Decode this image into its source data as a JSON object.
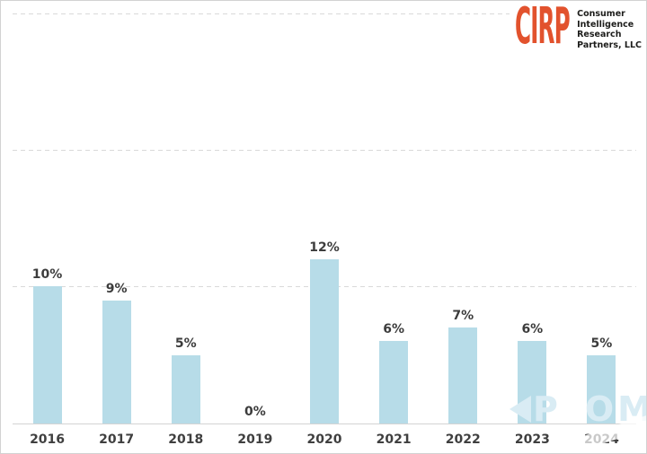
{
  "logo": {
    "acronym": "CIRP",
    "lines": [
      "Consumer",
      "Intelligence",
      "Research",
      "Partners, LLC"
    ]
  },
  "chart_data": {
    "type": "bar",
    "title": "",
    "xlabel": "",
    "ylabel": "",
    "categories": [
      "2016",
      "2017",
      "2018",
      "2019",
      "2020",
      "2021",
      "2022",
      "2023",
      "2024"
    ],
    "values": [
      10,
      9,
      5,
      0,
      12,
      6,
      7,
      6,
      5
    ],
    "data_labels": [
      "10%",
      "9%",
      "5%",
      "0%",
      "12%",
      "6%",
      "7%",
      "6%",
      "5%"
    ],
    "ylim": [
      0,
      30
    ],
    "gridlines": [
      10,
      20,
      30
    ],
    "grid_style": "dashed",
    "legend": "none",
    "bar_color": "#b7dce8"
  },
  "watermark": {
    "letters_left": "P",
    "letters_right": "OM"
  },
  "colors": {
    "bar": "#b7dce8",
    "grid": "#d9d9d9",
    "axis": "#d4d4d4",
    "label": "#3c3c3c",
    "logo_orange": "#e2522d",
    "logo_text": "#1d1d1b",
    "watermark": "#d9ecf4",
    "background": "#ffffff"
  }
}
